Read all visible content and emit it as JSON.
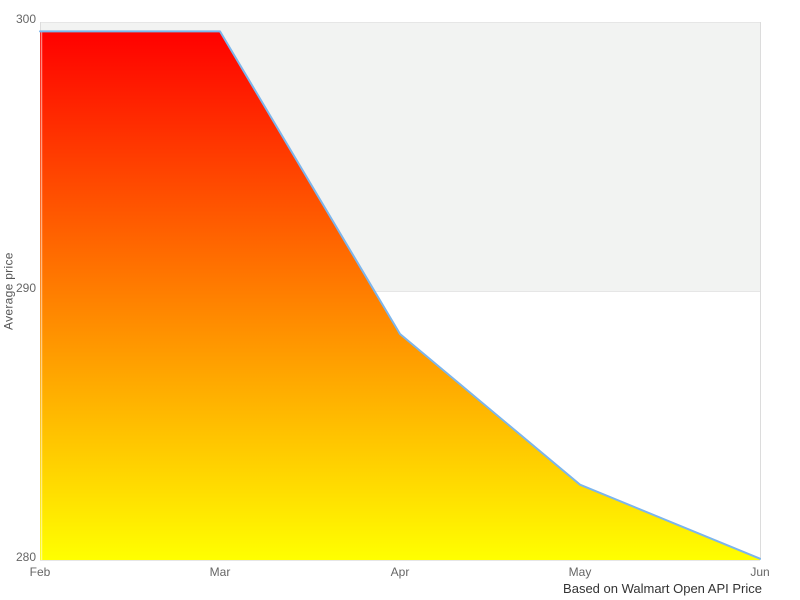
{
  "chart": {
    "y_axis_title": "Average price",
    "credits": "Based on Walmart Open API Price"
  },
  "chart_data": {
    "type": "area",
    "categories": [
      "Feb",
      "Mar",
      "Apr",
      "May",
      "Jun"
    ],
    "values": [
      299.65,
      299.65,
      288.4,
      282.8,
      280.05
    ],
    "title": "",
    "xlabel": "",
    "ylabel": "Average price",
    "ylim": [
      280,
      300
    ],
    "yticks": [
      280,
      290,
      300
    ],
    "grid": true,
    "legend": "none",
    "plot_band": {
      "from": 290,
      "to": 300,
      "color": "#f2f3f2"
    },
    "gridline_color": "#e6e6e6",
    "border_color": "#dcdcdc",
    "line_color": "#7cb5ec",
    "fill_gradient": {
      "top": "#ff0000",
      "bottom": "#ffff00"
    },
    "annotations": [
      "Based on Walmart Open API Price"
    ]
  }
}
